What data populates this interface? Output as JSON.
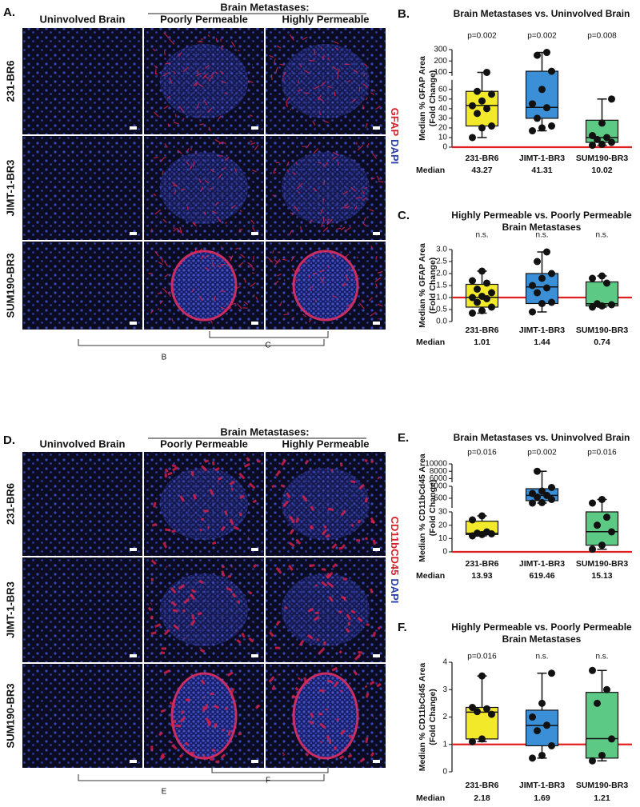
{
  "figures": [
    {
      "label": "A.",
      "group_header": "Brain Metastases:",
      "columns": [
        "Uninvolved Brain",
        "Poorly Permeable",
        "Highly Permeable"
      ],
      "rows": [
        "231-BR6",
        "JIMT-1-BR3",
        "SUM190-BR3"
      ],
      "stain": [
        "GFAP",
        "DAPI"
      ],
      "brackets": [
        "B",
        "C"
      ]
    },
    {
      "label": "D.",
      "group_header": "Brain Metastases:",
      "columns": [
        "Uninvolved Brain",
        "Poorly Permeable",
        "Highly Permeable"
      ],
      "rows": [
        "231-BR6",
        "JIMT-1-BR3",
        "SUM190-BR3"
      ],
      "stain": [
        "CD11bCD45",
        "DAPI"
      ],
      "brackets": [
        "E",
        "F"
      ]
    }
  ],
  "chart_data": [
    {
      "type": "box",
      "panel_label": "B.",
      "title_lines": [
        "Brain Metastases vs. Uninvolved Brain"
      ],
      "ylabel_lines": [
        "Median % GFAP Area",
        "(Fold Change)"
      ],
      "categories": [
        "231-BR6",
        "JIMT-1-BR3",
        "SUM190-BR3"
      ],
      "annotations": [
        "p=0.002",
        "p=0.002",
        "p=0.008"
      ],
      "median_label": "Median",
      "axis_segments": [
        {
          "ylim": [
            0,
            70
          ],
          "yticks": [
            0,
            10,
            20,
            30,
            40,
            50,
            60
          ]
        },
        {
          "ylim": [
            70,
            300
          ],
          "yticks": [
            100,
            200,
            300
          ]
        }
      ],
      "reference_line": 0,
      "reference_color": "#e02020",
      "groups": [
        {
          "color": "#f2e92a",
          "min": 10,
          "q1": 22,
          "median": 43.27,
          "q3": 58,
          "max": 100,
          "points": [
            10,
            20,
            22,
            35,
            40,
            43,
            48,
            55,
            58,
            100
          ]
        },
        {
          "color": "#3a8fd6",
          "min": 17,
          "q1": 30,
          "median": 41.31,
          "q3": 110,
          "max": 275,
          "points": [
            17,
            20,
            22,
            30,
            41,
            45,
            60,
            110,
            250,
            275
          ]
        },
        {
          "color": "#5cc985",
          "min": 2,
          "q1": 5,
          "median": 10.02,
          "q3": 28,
          "max": 50,
          "points": [
            2,
            3,
            5,
            8,
            10,
            12,
            25,
            50
          ]
        }
      ]
    },
    {
      "type": "box",
      "panel_label": "C.",
      "title_lines": [
        "Highly Permeable vs. Poorly Permeable",
        "Brain Metastases"
      ],
      "ylabel_lines": [
        "Median % GFAP Area",
        "(Fold Change)"
      ],
      "categories": [
        "231-BR6",
        "JIMT-1-BR3",
        "SUM190-BR3"
      ],
      "annotations": [
        "n.s.",
        "n.s.",
        "n.s."
      ],
      "median_label": "Median",
      "axis_segments": [
        {
          "ylim": [
            0,
            3
          ],
          "yticks": [
            {
              "value": 0,
              "label": "0.0"
            },
            0.5,
            {
              "value": 1,
              "label": "1.0"
            },
            1.5,
            {
              "value": 2,
              "label": "2.0"
            },
            2.5,
            {
              "value": 3,
              "label": "3.0"
            }
          ]
        }
      ],
      "reference_line": 1,
      "reference_color": "#e02020",
      "groups": [
        {
          "color": "#f2e92a",
          "min": 0.35,
          "q1": 0.6,
          "median": 1.01,
          "q3": 1.55,
          "max": 2.1,
          "points": [
            0.35,
            0.45,
            0.6,
            0.8,
            0.95,
            1.0,
            1.05,
            1.2,
            1.35,
            1.6,
            1.7,
            2.1
          ]
        },
        {
          "color": "#3a8fd6",
          "min": 0.4,
          "q1": 0.75,
          "median": 1.44,
          "q3": 2.0,
          "max": 2.9,
          "points": [
            0.4,
            0.75,
            0.8,
            1.2,
            1.4,
            1.5,
            1.8,
            2.0,
            2.5,
            2.9
          ]
        },
        {
          "color": "#5cc985",
          "min": 0.6,
          "q1": 0.65,
          "median": 0.74,
          "q3": 1.65,
          "max": 1.9,
          "points": [
            0.6,
            0.65,
            0.7,
            0.74,
            1.6,
            1.8,
            1.9
          ]
        }
      ]
    },
    {
      "type": "box",
      "panel_label": "E.",
      "title_lines": [
        "Brain Metastases vs. Uninvolved Brain"
      ],
      "ylabel_lines": [
        "Median % CD11bCd45 Area",
        "(Fold Change)"
      ],
      "categories": [
        "231-BR6",
        "JIMT-1-BR3",
        "SUM190-BR3"
      ],
      "annotations": [
        "p=0.016",
        "p=0.002",
        "p=0.016"
      ],
      "median_label": "Median",
      "axis_segments": [
        {
          "ylim": [
            0,
            30
          ],
          "yticks": [
            0,
            10,
            20,
            30
          ]
        },
        {
          "ylim": [
            100,
            1000
          ],
          "yticks": [
            500,
            1000
          ]
        },
        {
          "ylim": [
            5000,
            10000
          ],
          "yticks": [
            6000,
            8000,
            10000
          ]
        }
      ],
      "reference_line": 0,
      "reference_color": "#e02020",
      "groups": [
        {
          "color": "#f2e92a",
          "min": 12,
          "q1": 13,
          "median": 13.93,
          "q3": 23,
          "max": 27,
          "points": [
            12,
            13,
            13.5,
            14,
            15,
            24,
            27
          ]
        },
        {
          "color": "#3a8fd6",
          "min": 300,
          "q1": 400,
          "median": 619.46,
          "q3": 900,
          "max": 8000,
          "points": [
            300,
            320,
            450,
            550,
            620,
            700,
            800,
            950,
            8000
          ]
        },
        {
          "color": "#5cc985",
          "min": 2,
          "q1": 5,
          "median": 15.13,
          "q3": 30,
          "max": 450,
          "points": [
            2,
            5,
            15,
            20,
            26,
            300,
            450
          ]
        }
      ]
    },
    {
      "type": "box",
      "panel_label": "F.",
      "title_lines": [
        "Highly Permeable vs. Poorly Permeable",
        "Brain Metastases"
      ],
      "ylabel_lines": [
        "Median % CD11bCd45 Area",
        "(Fold Change)"
      ],
      "categories": [
        "231-BR6",
        "JIMT-1-BR3",
        "SUM190-BR3"
      ],
      "annotations": [
        "p=0.016",
        "n.s.",
        "n.s."
      ],
      "median_label": "Median",
      "axis_segments": [
        {
          "ylim": [
            0,
            4
          ],
          "yticks": [
            0,
            1,
            2,
            3,
            4
          ]
        }
      ],
      "reference_line": 1,
      "reference_color": "#e02020",
      "groups": [
        {
          "color": "#f2e92a",
          "min": 1.1,
          "q1": 1.2,
          "median": 2.18,
          "q3": 2.35,
          "max": 3.5,
          "points": [
            1.1,
            1.2,
            2.1,
            2.2,
            2.3,
            2.35,
            3.5
          ]
        },
        {
          "color": "#3a8fd6",
          "min": 0.5,
          "q1": 0.95,
          "median": 1.69,
          "q3": 2.25,
          "max": 3.6,
          "points": [
            0.5,
            0.6,
            0.95,
            1.5,
            1.7,
            2.0,
            2.5,
            3.6
          ]
        },
        {
          "color": "#5cc985",
          "min": 0.4,
          "q1": 0.5,
          "median": 1.21,
          "q3": 2.9,
          "max": 3.7,
          "points": [
            0.4,
            0.6,
            1.2,
            2.5,
            3.0,
            3.7
          ]
        }
      ]
    }
  ]
}
